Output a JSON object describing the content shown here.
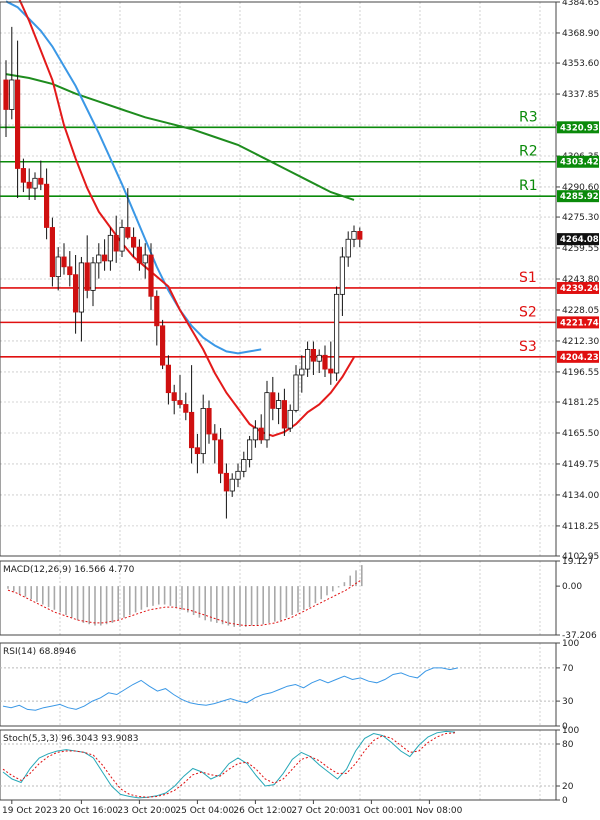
{
  "chart_data": [
    {
      "type": "candlestick",
      "ylim": [
        4102.95,
        4384.65
      ],
      "y_ticks": [
        "4384.65",
        "4368.90",
        "4353.60",
        "4337.85",
        "4322.10",
        "4306.35",
        "4290.60",
        "4275.30",
        "4259.55",
        "4243.80",
        "4228.05",
        "4212.30",
        "4196.55",
        "4181.25",
        "4165.50",
        "4149.75",
        "4134.00",
        "4118.25",
        "4102.95"
      ],
      "x_labels": [
        {
          "label": "19 Oct 2023",
          "i": 1
        },
        {
          "label": "20 Oct 16:00",
          "i": 13
        },
        {
          "label": "23 Oct 20:00",
          "i": 23
        },
        {
          "label": "25 Oct 04:00",
          "i": 33
        },
        {
          "label": "26 Oct 12:00",
          "i": 43
        },
        {
          "label": "27 Oct 20:00",
          "i": 53
        },
        {
          "label": "31 Oct 00:00",
          "i": 63
        },
        {
          "label": "1 Nov 08:00",
          "i": 73
        }
      ],
      "current_price": "4264.08",
      "levels": [
        {
          "name": "R3",
          "value": 4320.93,
          "tag": "4320.93",
          "color": "#0a8a0a"
        },
        {
          "name": "R2",
          "value": 4303.42,
          "tag": "4303.42",
          "color": "#0a8a0a"
        },
        {
          "name": "R1",
          "value": 4285.92,
          "tag": "4285.92",
          "color": "#0a8a0a"
        },
        {
          "name": "S1",
          "value": 4239.24,
          "tag": "4239.24",
          "color": "#e01010"
        },
        {
          "name": "S2",
          "value": 4221.74,
          "tag": "4221.74",
          "color": "#e01010"
        },
        {
          "name": "S3",
          "value": 4204.23,
          "tag": "4204.23",
          "color": "#e01010"
        }
      ],
      "candles": [
        [
          4345,
          4355,
          4316,
          4330
        ],
        [
          4330,
          4372,
          4325,
          4345
        ],
        [
          4345,
          4365,
          4285,
          4300
        ],
        [
          4300,
          4305,
          4288,
          4293
        ],
        [
          4293,
          4300,
          4284,
          4290
        ],
        [
          4290,
          4298,
          4284,
          4295
        ],
        [
          4295,
          4304,
          4289,
          4292
        ],
        [
          4292,
          4300,
          4264,
          4270
        ],
        [
          4270,
          4275,
          4240,
          4245
        ],
        [
          4245,
          4260,
          4238,
          4255
        ],
        [
          4255,
          4262,
          4246,
          4250
        ],
        [
          4250,
          4258,
          4240,
          4246
        ],
        [
          4246,
          4256,
          4216,
          4227
        ],
        [
          4227,
          4255,
          4212,
          4252
        ],
        [
          4252,
          4266,
          4234,
          4238
        ],
        [
          4238,
          4255,
          4230,
          4252
        ],
        [
          4252,
          4262,
          4244,
          4256
        ],
        [
          4256,
          4264,
          4248,
          4253
        ],
        [
          4253,
          4270,
          4248,
          4266
        ],
        [
          4266,
          4276,
          4252,
          4258
        ],
        [
          4258,
          4274,
          4255,
          4270
        ],
        [
          4270,
          4290,
          4264,
          4265
        ],
        [
          4265,
          4270,
          4255,
          4260
        ],
        [
          4260,
          4264,
          4248,
          4252
        ],
        [
          4252,
          4262,
          4244,
          4256
        ],
        [
          4256,
          4262,
          4228,
          4235
        ],
        [
          4235,
          4238,
          4210,
          4220
        ],
        [
          4220,
          4223,
          4198,
          4200
        ],
        [
          4200,
          4205,
          4180,
          4186
        ],
        [
          4186,
          4190,
          4175,
          4182
        ],
        [
          4182,
          4195,
          4178,
          4180
        ],
        [
          4180,
          4186,
          4172,
          4176
        ],
        [
          4176,
          4200,
          4150,
          4158
        ],
        [
          4158,
          4165,
          4145,
          4155
        ],
        [
          4155,
          4185,
          4150,
          4178
        ],
        [
          4178,
          4182,
          4160,
          4165
        ],
        [
          4165,
          4170,
          4150,
          4162
        ],
        [
          4162,
          4168,
          4140,
          4145
        ],
        [
          4145,
          4150,
          4122,
          4136
        ],
        [
          4136,
          4145,
          4133,
          4142
        ],
        [
          4142,
          4150,
          4138,
          4146
        ],
        [
          4146,
          4156,
          4143,
          4152
        ],
        [
          4152,
          4164,
          4148,
          4162
        ],
        [
          4162,
          4172,
          4158,
          4168
        ],
        [
          4168,
          4175,
          4160,
          4162
        ],
        [
          4162,
          4192,
          4158,
          4186
        ],
        [
          4186,
          4194,
          4172,
          4178
        ],
        [
          4178,
          4186,
          4170,
          4182
        ],
        [
          4182,
          4188,
          4164,
          4168
        ],
        [
          4168,
          4180,
          4166,
          4177
        ],
        [
          4177,
          4200,
          4176,
          4195
        ],
        [
          4195,
          4205,
          4186,
          4198
        ],
        [
          4198,
          4212,
          4194,
          4208
        ],
        [
          4208,
          4212,
          4195,
          4202
        ],
        [
          4202,
          4208,
          4196,
          4205
        ],
        [
          4205,
          4210,
          4194,
          4198
        ],
        [
          4198,
          4212,
          4190,
          4196
        ],
        [
          4196,
          4240,
          4192,
          4236
        ],
        [
          4236,
          4260,
          4225,
          4255
        ],
        [
          4255,
          4268,
          4250,
          4264
        ],
        [
          4264,
          4271,
          4260,
          4268
        ],
        [
          4268,
          4270,
          4260,
          4264
        ]
      ],
      "sma_red": [
        [
          0,
          4400
        ],
        [
          2,
          4388
        ],
        [
          4,
          4375
        ],
        [
          6,
          4360
        ],
        [
          8,
          4345
        ],
        [
          10,
          4322
        ],
        [
          12,
          4305
        ],
        [
          14,
          4290
        ],
        [
          16,
          4278
        ],
        [
          18,
          4270
        ],
        [
          20,
          4262
        ],
        [
          22,
          4255
        ],
        [
          24,
          4250
        ],
        [
          26,
          4245
        ],
        [
          28,
          4240
        ],
        [
          30,
          4228
        ],
        [
          32,
          4218
        ],
        [
          34,
          4208
        ],
        [
          36,
          4196
        ],
        [
          38,
          4186
        ],
        [
          40,
          4178
        ],
        [
          42,
          4170
        ],
        [
          44,
          4166
        ],
        [
          46,
          4164
        ],
        [
          48,
          4166
        ],
        [
          50,
          4170
        ],
        [
          52,
          4176
        ],
        [
          54,
          4180
        ],
        [
          56,
          4186
        ],
        [
          58,
          4194
        ],
        [
          60,
          4204
        ]
      ],
      "sma_blue": [
        [
          0,
          4385
        ],
        [
          2,
          4382
        ],
        [
          4,
          4376
        ],
        [
          6,
          4370
        ],
        [
          8,
          4362
        ],
        [
          10,
          4352
        ],
        [
          12,
          4342
        ],
        [
          14,
          4330
        ],
        [
          16,
          4318
        ],
        [
          18,
          4305
        ],
        [
          20,
          4292
        ],
        [
          22,
          4278
        ],
        [
          24,
          4264
        ],
        [
          26,
          4250
        ],
        [
          28,
          4238
        ],
        [
          30,
          4228
        ],
        [
          32,
          4220
        ],
        [
          34,
          4214
        ],
        [
          36,
          4210
        ],
        [
          38,
          4207
        ],
        [
          40,
          4206
        ],
        [
          42,
          4207
        ],
        [
          44,
          4208
        ]
      ],
      "sma_green": [
        [
          0,
          4348
        ],
        [
          4,
          4346
        ],
        [
          8,
          4343
        ],
        [
          12,
          4338
        ],
        [
          16,
          4334
        ],
        [
          20,
          4330
        ],
        [
          24,
          4326
        ],
        [
          28,
          4323
        ],
        [
          32,
          4320
        ],
        [
          36,
          4316
        ],
        [
          40,
          4312
        ],
        [
          44,
          4306
        ],
        [
          48,
          4300
        ],
        [
          52,
          4294
        ],
        [
          56,
          4288
        ],
        [
          60,
          4284
        ]
      ]
    },
    {
      "type": "macd",
      "label": "MACD(12,26,9) 16.566 4.770",
      "ticks": [
        "19.127",
        "0.00",
        "-37.206"
      ],
      "ylim": [
        -37.206,
        19.127
      ],
      "hist": [
        -2,
        -4,
        -6,
        -8,
        -10,
        -12,
        -14,
        -16,
        -18,
        -20,
        -22,
        -24,
        -26,
        -28,
        -29,
        -30,
        -30,
        -29,
        -28,
        -26,
        -24,
        -22,
        -20,
        -18,
        -16,
        -15,
        -14,
        -14,
        -15,
        -16,
        -18,
        -20,
        -22,
        -24,
        -26,
        -27,
        -28,
        -29,
        -30,
        -31,
        -31,
        -31,
        -30,
        -30,
        -29,
        -28,
        -27,
        -26,
        -24,
        -22,
        -20,
        -18,
        -16,
        -13,
        -10,
        -7,
        -4,
        -1,
        3,
        8,
        12,
        16
      ],
      "signal": [
        -3,
        -5,
        -8,
        -11,
        -14,
        -17,
        -20,
        -22,
        -24,
        -26,
        -27,
        -28,
        -28,
        -27,
        -26,
        -24,
        -22,
        -20,
        -18,
        -17,
        -16,
        -16,
        -17,
        -18,
        -20,
        -22,
        -24,
        -26,
        -28,
        -29,
        -30,
        -30,
        -30,
        -29,
        -28,
        -26,
        -24,
        -21,
        -18,
        -15,
        -12,
        -9,
        -6,
        -3,
        1,
        5
      ]
    },
    {
      "type": "rsi",
      "label": "RSI(14) 68.8946",
      "ticks": [
        "100",
        "70",
        "30",
        "0"
      ],
      "ylim": [
        0,
        100
      ],
      "values": [
        24,
        22,
        25,
        20,
        19,
        22,
        24,
        26,
        22,
        20,
        24,
        30,
        34,
        40,
        38,
        44,
        50,
        55,
        48,
        42,
        45,
        38,
        32,
        28,
        26,
        25,
        27,
        30,
        33,
        30,
        28,
        34,
        38,
        40,
        44,
        48,
        50,
        46,
        52,
        56,
        52,
        56,
        60,
        56,
        58,
        54,
        52,
        56,
        62,
        64,
        60,
        58,
        66,
        70,
        70,
        68,
        70
      ]
    },
    {
      "type": "stochastic",
      "label": "Stoch(5,3,3) 96.3043 93.9083",
      "ticks": [
        "100",
        "80",
        "20",
        "0"
      ],
      "ylim": [
        0,
        100
      ],
      "k": [
        40,
        30,
        25,
        45,
        60,
        66,
        70,
        72,
        70,
        68,
        60,
        40,
        20,
        8,
        5,
        3,
        4,
        6,
        10,
        20,
        34,
        45,
        40,
        30,
        36,
        52,
        60,
        52,
        35,
        20,
        22,
        38,
        58,
        68,
        62,
        50,
        40,
        30,
        44,
        70,
        88,
        95,
        92,
        82,
        70,
        62,
        78,
        90,
        96,
        98,
        97
      ],
      "d": [
        44,
        35,
        28,
        38,
        52,
        62,
        68,
        70,
        70,
        68,
        64,
        50,
        32,
        16,
        8,
        5,
        4,
        5,
        8,
        14,
        24,
        36,
        40,
        36,
        34,
        44,
        52,
        54,
        44,
        30,
        24,
        30,
        44,
        58,
        62,
        56,
        46,
        38,
        38,
        52,
        70,
        85,
        92,
        88,
        78,
        68,
        70,
        82,
        90,
        95,
        96
      ]
    }
  ]
}
